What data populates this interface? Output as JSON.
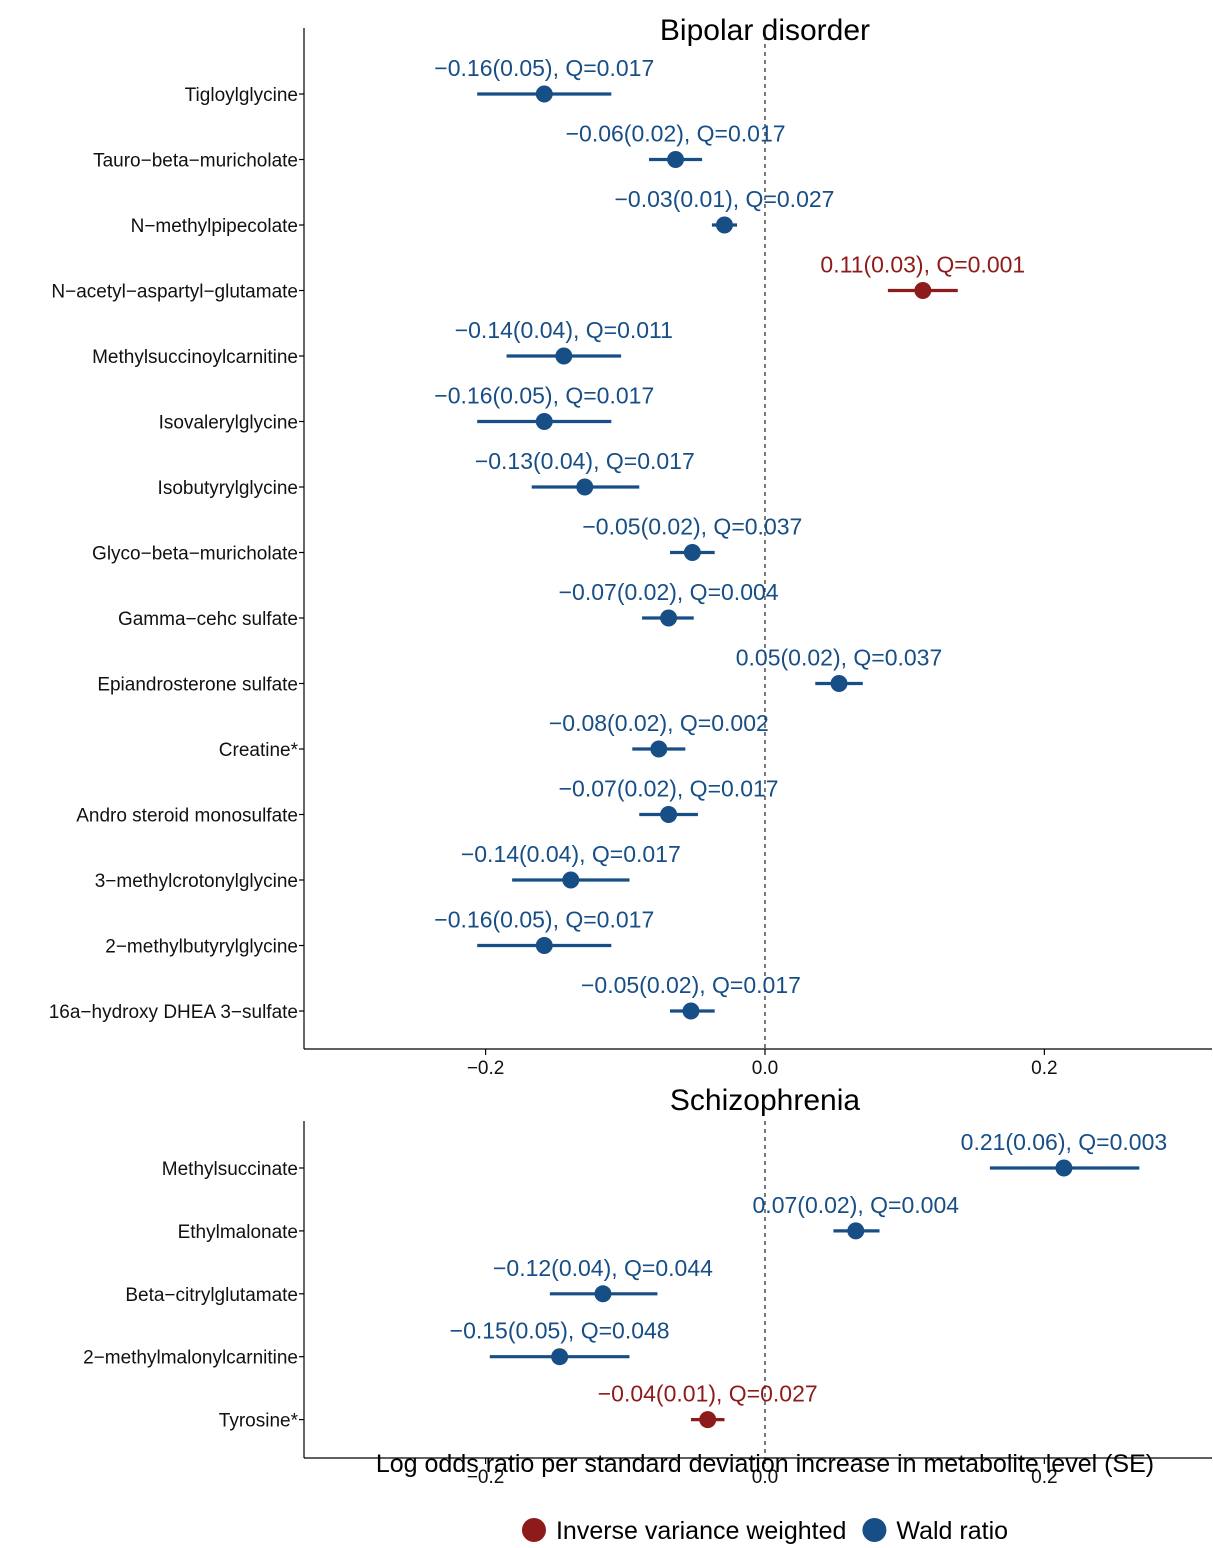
{
  "colors": {
    "ivw": "#8e1b1b",
    "wald": "#174e86"
  },
  "chart_data": [
    {
      "type": "scatter",
      "subtype": "forest",
      "title": "Bipolar disorder",
      "xlim": [
        -0.33,
        0.32
      ],
      "xticks": [
        -0.2,
        0.0,
        0.2
      ],
      "xtick_labels": [
        "−0.2",
        "0.0",
        "0.2"
      ],
      "reference_line": 0,
      "rows": [
        {
          "label": "Tigloylglycine",
          "estimate": -0.158,
          "ci_low": -0.206,
          "ci_high": -0.11,
          "method": "Wald ratio",
          "annotation": "−0.16(0.05), Q=0.017"
        },
        {
          "label": "Tauro−beta−muricholate",
          "estimate": -0.064,
          "ci_low": -0.083,
          "ci_high": -0.045,
          "method": "Wald ratio",
          "annotation": "−0.06(0.02), Q=0.017"
        },
        {
          "label": "N−methylpipecolate",
          "estimate": -0.029,
          "ci_low": -0.038,
          "ci_high": -0.02,
          "method": "Wald ratio",
          "annotation": "−0.03(0.01), Q=0.027"
        },
        {
          "label": "N−acetyl−aspartyl−glutamate",
          "estimate": 0.113,
          "ci_low": 0.088,
          "ci_high": 0.138,
          "method": "Inverse variance weighted",
          "annotation": "0.11(0.03), Q=0.001"
        },
        {
          "label": "Methylsuccinoylcarnitine",
          "estimate": -0.144,
          "ci_low": -0.185,
          "ci_high": -0.103,
          "method": "Wald ratio",
          "annotation": "−0.14(0.04), Q=0.011"
        },
        {
          "label": "Isovalerylglycine",
          "estimate": -0.158,
          "ci_low": -0.206,
          "ci_high": -0.11,
          "method": "Wald ratio",
          "annotation": "−0.16(0.05), Q=0.017"
        },
        {
          "label": "Isobutyrylglycine",
          "estimate": -0.129,
          "ci_low": -0.167,
          "ci_high": -0.09,
          "method": "Wald ratio",
          "annotation": "−0.13(0.04), Q=0.017"
        },
        {
          "label": "Glyco−beta−muricholate",
          "estimate": -0.052,
          "ci_low": -0.068,
          "ci_high": -0.036,
          "method": "Wald ratio",
          "annotation": "−0.05(0.02), Q=0.037"
        },
        {
          "label": "Gamma−cehc sulfate",
          "estimate": -0.069,
          "ci_low": -0.088,
          "ci_high": -0.051,
          "method": "Wald ratio",
          "annotation": "−0.07(0.02), Q=0.004"
        },
        {
          "label": "Epiandrosterone sulfate",
          "estimate": 0.053,
          "ci_low": 0.036,
          "ci_high": 0.07,
          "method": "Wald ratio",
          "annotation": "0.05(0.02), Q=0.037"
        },
        {
          "label": "Creatine*",
          "estimate": -0.076,
          "ci_low": -0.095,
          "ci_high": -0.057,
          "method": "Wald ratio",
          "annotation": "−0.08(0.02), Q=0.002"
        },
        {
          "label": "Andro steroid monosulfate",
          "estimate": -0.069,
          "ci_low": -0.09,
          "ci_high": -0.048,
          "method": "Wald ratio",
          "annotation": "−0.07(0.02), Q=0.017"
        },
        {
          "label": "3−methylcrotonylglycine",
          "estimate": -0.139,
          "ci_low": -0.181,
          "ci_high": -0.097,
          "method": "Wald ratio",
          "annotation": "−0.14(0.04), Q=0.017"
        },
        {
          "label": "2−methylbutyrylglycine",
          "estimate": -0.158,
          "ci_low": -0.206,
          "ci_high": -0.11,
          "method": "Wald ratio",
          "annotation": "−0.16(0.05), Q=0.017"
        },
        {
          "label": "16a−hydroxy DHEA 3−sulfate",
          "estimate": -0.053,
          "ci_low": -0.068,
          "ci_high": -0.036,
          "method": "Wald ratio",
          "annotation": "−0.05(0.02), Q=0.017"
        }
      ]
    },
    {
      "type": "scatter",
      "subtype": "forest",
      "title": "Schizophrenia",
      "xlim": [
        -0.33,
        0.32
      ],
      "xticks": [
        -0.2,
        0.0,
        0.2
      ],
      "xtick_labels": [
        "−0.2",
        "0.0",
        "0.2"
      ],
      "reference_line": 0,
      "xlabel": "Log odds ratio per standard deviation increase in metabolite level (SE)",
      "rows": [
        {
          "label": "Methylsuccinate",
          "estimate": 0.214,
          "ci_low": 0.161,
          "ci_high": 0.268,
          "method": "Wald ratio",
          "annotation": "0.21(0.06), Q=0.003"
        },
        {
          "label": "Ethylmalonate",
          "estimate": 0.065,
          "ci_low": 0.049,
          "ci_high": 0.082,
          "method": "Wald ratio",
          "annotation": "0.07(0.02), Q=0.004"
        },
        {
          "label": "Beta−citrylglutamate",
          "estimate": -0.116,
          "ci_low": -0.154,
          "ci_high": -0.077,
          "method": "Wald ratio",
          "annotation": "−0.12(0.04), Q=0.044"
        },
        {
          "label": "2−methylmalonylcarnitine",
          "estimate": -0.147,
          "ci_low": -0.197,
          "ci_high": -0.097,
          "method": "Wald ratio",
          "annotation": "−0.15(0.05), Q=0.048"
        },
        {
          "label": "Tyrosine*",
          "estimate": -0.041,
          "ci_low": -0.053,
          "ci_high": -0.029,
          "method": "Inverse variance weighted",
          "annotation": "−0.04(0.01), Q=0.027"
        }
      ]
    }
  ],
  "legend": {
    "placement": "bottom",
    "items": [
      {
        "label": "Inverse variance weighted",
        "color": "#8e1b1b"
      },
      {
        "label": "Wald ratio",
        "color": "#174e86"
      }
    ]
  }
}
